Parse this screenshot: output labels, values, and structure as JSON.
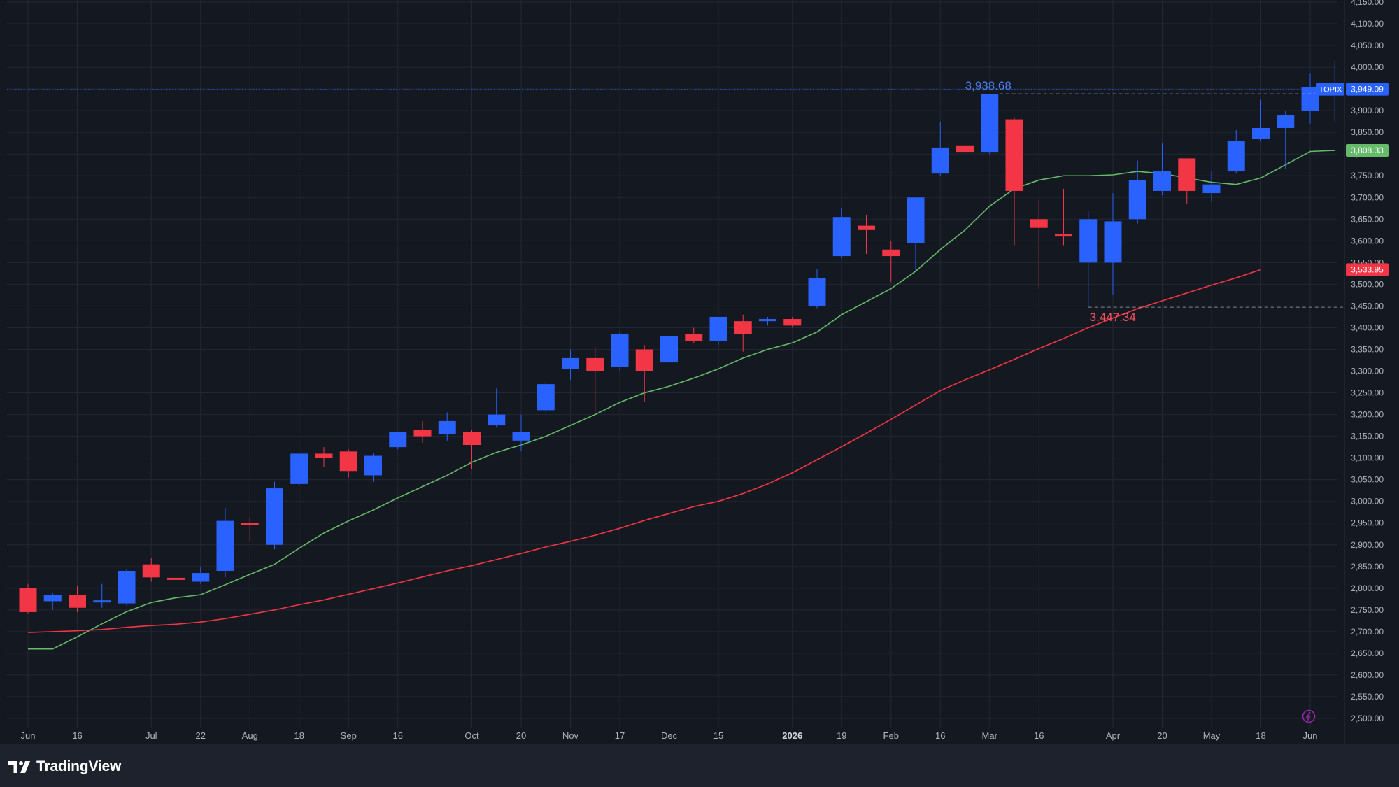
{
  "brand": {
    "name": "TradingView",
    "icon": "tradingview-logo-icon"
  },
  "colors": {
    "background": "#141821",
    "grid": "#232733",
    "up": "#2962ff",
    "down": "#f23645",
    "sma_short": "#66bb6a",
    "sma_long": "#f23645",
    "axis_text": "#b2b5be"
  },
  "chart_data": {
    "type": "candlestick",
    "symbol": "TOPIX",
    "interval": "1W",
    "ylim": [
      2500,
      4150
    ],
    "y_ticks": [
      "2,500.00",
      "2,550.00",
      "2,600.00",
      "2,650.00",
      "2,700.00",
      "2,750.00",
      "2,800.00",
      "2,850.00",
      "2,900.00",
      "2,950.00",
      "3,000.00",
      "3,050.00",
      "3,100.00",
      "3,150.00",
      "3,200.00",
      "3,250.00",
      "3,300.00",
      "3,350.00",
      "3,400.00",
      "3,450.00",
      "3,500.00",
      "3,550.00",
      "3,600.00",
      "3,650.00",
      "3,700.00",
      "3,750.00",
      "3,800.00",
      "3,850.00",
      "3,900.00",
      "3,950.00",
      "4,000.00",
      "4,050.00",
      "4,100.00",
      "4,150.00"
    ],
    "x_labels": [
      {
        "label": "Jun",
        "bar": 0,
        "bold": false
      },
      {
        "label": "16",
        "bar": 2,
        "bold": false
      },
      {
        "label": "Jul",
        "bar": 5,
        "bold": false
      },
      {
        "label": "22",
        "bar": 7,
        "bold": false
      },
      {
        "label": "Aug",
        "bar": 9,
        "bold": false
      },
      {
        "label": "18",
        "bar": 11,
        "bold": false
      },
      {
        "label": "Sep",
        "bar": 13,
        "bold": false
      },
      {
        "label": "16",
        "bar": 15,
        "bold": false
      },
      {
        "label": "Oct",
        "bar": 18,
        "bold": false
      },
      {
        "label": "20",
        "bar": 20,
        "bold": false
      },
      {
        "label": "Nov",
        "bar": 22,
        "bold": false
      },
      {
        "label": "17",
        "bar": 24,
        "bold": false
      },
      {
        "label": "Dec",
        "bar": 26,
        "bold": false
      },
      {
        "label": "15",
        "bar": 28,
        "bold": false
      },
      {
        "label": "2026",
        "bar": 31,
        "bold": true
      },
      {
        "label": "19",
        "bar": 33,
        "bold": false
      },
      {
        "label": "Feb",
        "bar": 35,
        "bold": false
      },
      {
        "label": "16",
        "bar": 37,
        "bold": false
      },
      {
        "label": "Mar",
        "bar": 39,
        "bold": false
      },
      {
        "label": "16",
        "bar": 41,
        "bold": false
      },
      {
        "label": "Apr",
        "bar": 44,
        "bold": false
      },
      {
        "label": "20",
        "bar": 46,
        "bold": false
      },
      {
        "label": "May",
        "bar": 48,
        "bold": false
      },
      {
        "label": "18",
        "bar": 50,
        "bold": false
      },
      {
        "label": "Jun",
        "bar": 52,
        "bold": false
      }
    ],
    "ohlc": [
      [
        2800,
        2810,
        2740,
        2745
      ],
      [
        2770,
        2790,
        2750,
        2785
      ],
      [
        2785,
        2805,
        2745,
        2755
      ],
      [
        2770,
        2810,
        2755,
        2772
      ],
      [
        2765,
        2845,
        2760,
        2840
      ],
      [
        2855,
        2870,
        2815,
        2825
      ],
      [
        2824,
        2840,
        2815,
        2822
      ],
      [
        2815,
        2850,
        2810,
        2835
      ],
      [
        2840,
        2985,
        2825,
        2955
      ],
      [
        2950,
        2965,
        2910,
        2945
      ],
      [
        2900,
        3045,
        2890,
        3030
      ],
      [
        3040,
        3110,
        3035,
        3110
      ],
      [
        3110,
        3125,
        3080,
        3100
      ],
      [
        3115,
        3120,
        3055,
        3070
      ],
      [
        3060,
        3110,
        3045,
        3105
      ],
      [
        3125,
        3160,
        3120,
        3160
      ],
      [
        3165,
        3185,
        3135,
        3150
      ],
      [
        3155,
        3205,
        3140,
        3185
      ],
      [
        3160,
        3165,
        3075,
        3130
      ],
      [
        3175,
        3260,
        3170,
        3200
      ],
      [
        3140,
        3200,
        3115,
        3160
      ],
      [
        3210,
        3275,
        3205,
        3270
      ],
      [
        3305,
        3350,
        3280,
        3330
      ],
      [
        3330,
        3355,
        3205,
        3300
      ],
      [
        3310,
        3390,
        3300,
        3385
      ],
      [
        3350,
        3360,
        3230,
        3300
      ],
      [
        3320,
        3385,
        3285,
        3380
      ],
      [
        3385,
        3400,
        3365,
        3370
      ],
      [
        3370,
        3425,
        3360,
        3425
      ],
      [
        3415,
        3430,
        3345,
        3385
      ],
      [
        3415,
        3425,
        3405,
        3420
      ],
      [
        3420,
        3425,
        3400,
        3405
      ],
      [
        3450,
        3535,
        3445,
        3515
      ],
      [
        3565,
        3675,
        3560,
        3655
      ],
      [
        3635,
        3660,
        3570,
        3625
      ],
      [
        3580,
        3600,
        3505,
        3565
      ],
      [
        3595,
        3695,
        3530,
        3700
      ],
      [
        3755,
        3875,
        3750,
        3815
      ],
      [
        3820,
        3860,
        3745,
        3805
      ],
      [
        3805,
        3938.68,
        3800,
        3938.68
      ],
      [
        3880,
        3885,
        3590,
        3715
      ],
      [
        3650,
        3695,
        3490,
        3630
      ],
      [
        3615,
        3720,
        3590,
        3610
      ],
      [
        3550,
        3670,
        3447.34,
        3650
      ],
      [
        3550,
        3710,
        3475,
        3645
      ],
      [
        3650,
        3785,
        3640,
        3740
      ],
      [
        3715,
        3825,
        3705,
        3760
      ],
      [
        3790,
        3790,
        3685,
        3715
      ],
      [
        3710,
        3760,
        3690,
        3730
      ],
      [
        3760,
        3855,
        3755,
        3830
      ],
      [
        3835,
        3925,
        3830,
        3860
      ],
      [
        3860,
        3900,
        3765,
        3890
      ],
      [
        3900,
        3985,
        3870,
        3955
      ],
      [
        3945,
        4015,
        3875,
        3949.09
      ]
    ],
    "series": [
      {
        "name": "",
        "color": "#66bb6a",
        "values": [
          2660,
          2660,
          2688,
          2718,
          2746,
          2767,
          2778,
          2785,
          2808,
          2832,
          2855,
          2892,
          2927,
          2955,
          2980,
          3008,
          3034,
          3060,
          3090,
          3113,
          3130,
          3150,
          3175,
          3200,
          3228,
          3250,
          3265,
          3284,
          3305,
          3330,
          3350,
          3365,
          3390,
          3430,
          3460,
          3490,
          3530,
          3580,
          3625,
          3680,
          3720,
          3740,
          3750,
          3750,
          3752,
          3760,
          3755,
          3745,
          3735,
          3730,
          3745,
          3775,
          3806,
          3808.33
        ]
      },
      {
        "name": "",
        "color": "#f23645",
        "values": [
          2698,
          2700,
          2702,
          2705,
          2710,
          2714,
          2717,
          2722,
          2730,
          2740,
          2750,
          2762,
          2773,
          2786,
          2799,
          2812,
          2826,
          2840,
          2852,
          2866,
          2880,
          2895,
          2908,
          2922,
          2938,
          2956,
          2972,
          2988,
          3000,
          3018,
          3040,
          3066,
          3096,
          3126,
          3157,
          3189,
          3222,
          3255,
          3280,
          3303,
          3327,
          3352,
          3375,
          3400,
          3422,
          3444,
          3462,
          3480,
          3498,
          3515,
          3533.95
        ]
      }
    ],
    "annotations": {
      "high": {
        "label": "3,938.68",
        "value": 3938.68,
        "bar": 39
      },
      "low": {
        "label": "3,447.34",
        "value": 3447.34,
        "bar": 43
      }
    },
    "price_labels": [
      {
        "label": "3,949.09",
        "value": 3949.09,
        "color": "#2962ff",
        "tag": "TOPIX"
      },
      {
        "label": "3,808.33",
        "value": 3808.33,
        "color": "#66bb6a"
      },
      {
        "label": "3,533.95",
        "value": 3533.95,
        "color": "#f23645"
      }
    ]
  }
}
